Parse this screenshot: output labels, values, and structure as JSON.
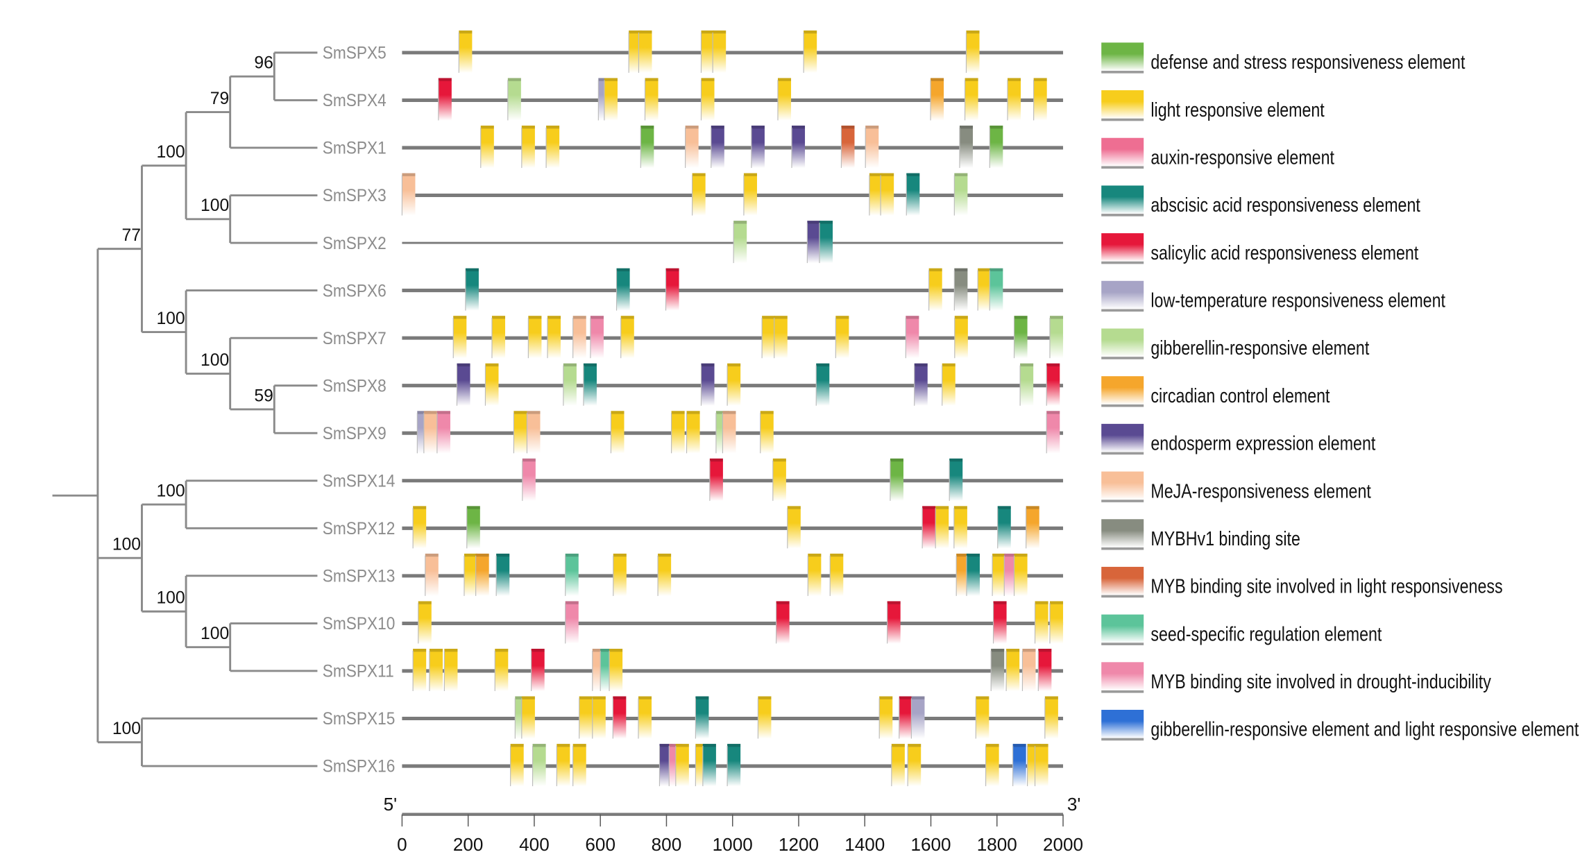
{
  "legend": [
    {
      "key": "defense",
      "label": "defense and stress responsiveness element",
      "color": "#6db545"
    },
    {
      "key": "light",
      "label": "light responsive element",
      "color": "#f7cd1c"
    },
    {
      "key": "auxin",
      "label": "auxin-responsive element",
      "color": "#ee6e92"
    },
    {
      "key": "aba",
      "label": "abscisic acid responsiveness element",
      "color": "#17877d"
    },
    {
      "key": "sa",
      "label": "salicylic acid responsiveness element",
      "color": "#e6173a"
    },
    {
      "key": "lowtemp",
      "label": "low-temperature responsiveness element",
      "color": "#a7a4c6"
    },
    {
      "key": "ga",
      "label": "gibberellin-responsive element",
      "color": "#b5db90"
    },
    {
      "key": "circadian",
      "label": "circadian control element",
      "color": "#f5a62c"
    },
    {
      "key": "endosperm",
      "label": "endosperm expression element",
      "color": "#5a4a92"
    },
    {
      "key": "meja",
      "label": "MeJA-responsiveness element",
      "color": "#f8bf98"
    },
    {
      "key": "mybhv1",
      "label": "MYBHv1 binding site",
      "color": "#878c80"
    },
    {
      "key": "myblight",
      "label": "MYB binding site involved in light responsiveness",
      "color": "#d8653a"
    },
    {
      "key": "seed",
      "label": "seed-specific regulation element",
      "color": "#5cc49a"
    },
    {
      "key": "drought",
      "label": "MYB binding site involved in drought-inducibility",
      "color": "#ef88aa"
    },
    {
      "key": "galight",
      "label": "gibberellin-responsive element and light responsive element",
      "color": "#2e70d6"
    }
  ],
  "tree": {
    "children": [
      {
        "support": "77",
        "children": [
          {
            "support": "100",
            "children": [
              {
                "support": "79",
                "children": [
                  {
                    "support": "96",
                    "children": [
                      {
                        "leaf": "SmSPX5"
                      },
                      {
                        "leaf": "SmSPX4"
                      }
                    ]
                  },
                  {
                    "leaf": "SmSPX1"
                  }
                ]
              },
              {
                "support": "100",
                "children": [
                  {
                    "leaf": "SmSPX3"
                  },
                  {
                    "leaf": "SmSPX2"
                  }
                ]
              }
            ]
          },
          {
            "support": "100",
            "children": [
              {
                "leaf": "SmSPX6"
              },
              {
                "support": "100",
                "children": [
                  {
                    "leaf": "SmSPX7"
                  },
                  {
                    "support": "59",
                    "children": [
                      {
                        "leaf": "SmSPX8"
                      },
                      {
                        "leaf": "SmSPX9"
                      }
                    ]
                  }
                ]
              }
            ]
          }
        ]
      },
      {
        "support": "100",
        "children": [
          {
            "support": "100",
            "children": [
              {
                "leaf": "SmSPX14"
              },
              {
                "leaf": "SmSPX12"
              }
            ]
          },
          {
            "support": "100",
            "children": [
              {
                "leaf": "SmSPX13"
              },
              {
                "support": "100",
                "children": [
                  {
                    "leaf": "SmSPX10"
                  },
                  {
                    "leaf": "SmSPX11"
                  }
                ]
              }
            ]
          }
        ]
      },
      {
        "support": "100",
        "children": [
          {
            "leaf": "SmSPX15"
          },
          {
            "leaf": "SmSPX16"
          }
        ]
      }
    ]
  },
  "genes": [
    {
      "name": "SmSPX5",
      "elements": [
        [
          "light",
          172
        ],
        [
          "light",
          686
        ],
        [
          "light",
          716
        ],
        [
          "light",
          905
        ],
        [
          "light",
          940
        ],
        [
          "light",
          1215
        ],
        [
          "light",
          1707
        ]
      ]
    },
    {
      "name": "SmSPX4",
      "elements": [
        [
          "sa",
          110
        ],
        [
          "ga",
          320
        ],
        [
          "lowtemp",
          594
        ],
        [
          "light",
          612
        ],
        [
          "light",
          735
        ],
        [
          "light",
          905
        ],
        [
          "light",
          1137
        ],
        [
          "circadian",
          1599
        ],
        [
          "light",
          1703
        ],
        [
          "light",
          1832
        ],
        [
          "light",
          1911
        ]
      ]
    },
    {
      "name": "SmSPX1",
      "elements": [
        [
          "light",
          238
        ],
        [
          "light",
          362
        ],
        [
          "light",
          436
        ],
        [
          "defense",
          722
        ],
        [
          "meja",
          857
        ],
        [
          "endosperm",
          935
        ],
        [
          "endosperm",
          1057
        ],
        [
          "endosperm",
          1179
        ],
        [
          "myblight",
          1329
        ],
        [
          "meja",
          1402
        ],
        [
          "mybhv1",
          1687
        ],
        [
          "defense",
          1778
        ]
      ]
    },
    {
      "name": "SmSPX3",
      "elements": [
        [
          "meja",
          0
        ],
        [
          "light",
          878
        ],
        [
          "light",
          1034
        ],
        [
          "light",
          1414
        ],
        [
          "light",
          1448
        ],
        [
          "aba",
          1526
        ],
        [
          "ga",
          1671
        ]
      ]
    },
    {
      "name": "SmSPX2",
      "elements": [
        [
          "ga",
          1003
        ],
        [
          "endosperm",
          1226
        ],
        [
          "aba",
          1263
        ]
      ]
    },
    {
      "name": "SmSPX6",
      "elements": [
        [
          "aba",
          192
        ],
        [
          "aba",
          649
        ],
        [
          "sa",
          798
        ],
        [
          "light",
          1594
        ],
        [
          "mybhv1",
          1671
        ],
        [
          "light",
          1742
        ],
        [
          "seed",
          1778
        ]
      ]
    },
    {
      "name": "SmSPX7",
      "elements": [
        [
          "light",
          155
        ],
        [
          "light",
          272
        ],
        [
          "light",
          382
        ],
        [
          "light",
          440
        ],
        [
          "meja",
          517
        ],
        [
          "drought",
          570
        ],
        [
          "light",
          662
        ],
        [
          "light",
          1089
        ],
        [
          "light",
          1126
        ],
        [
          "light",
          1312
        ],
        [
          "drought",
          1524
        ],
        [
          "light",
          1672
        ],
        [
          "defense",
          1852
        ],
        [
          "ga",
          1960
        ]
      ]
    },
    {
      "name": "SmSPX8",
      "elements": [
        [
          "endosperm",
          166
        ],
        [
          "light",
          252
        ],
        [
          "ga",
          488
        ],
        [
          "aba",
          549
        ],
        [
          "endosperm",
          905
        ],
        [
          "light",
          984
        ],
        [
          "aba",
          1253
        ],
        [
          "endosperm",
          1550
        ],
        [
          "light",
          1634
        ],
        [
          "ga",
          1870
        ],
        [
          "sa",
          1950
        ]
      ]
    },
    {
      "name": "SmSPX9",
      "elements": [
        [
          "lowtemp",
          46
        ],
        [
          "meja",
          66
        ],
        [
          "drought",
          106
        ],
        [
          "light",
          338
        ],
        [
          "meja",
          378
        ],
        [
          "light",
          632
        ],
        [
          "light",
          815
        ],
        [
          "light",
          861
        ],
        [
          "ga",
          950
        ],
        [
          "meja",
          970
        ],
        [
          "light",
          1084
        ],
        [
          "drought",
          1950
        ]
      ]
    },
    {
      "name": "SmSPX14",
      "elements": [
        [
          "drought",
          364
        ],
        [
          "sa",
          931
        ],
        [
          "light",
          1122
        ],
        [
          "defense",
          1477
        ],
        [
          "aba",
          1656
        ]
      ]
    },
    {
      "name": "SmSPX12",
      "elements": [
        [
          "light",
          33
        ],
        [
          "defense",
          196
        ],
        [
          "light",
          1166
        ],
        [
          "sa",
          1574
        ],
        [
          "light",
          1614
        ],
        [
          "light",
          1670
        ],
        [
          "aba",
          1802
        ],
        [
          "circadian",
          1888
        ]
      ]
    },
    {
      "name": "SmSPX13",
      "elements": [
        [
          "meja",
          70
        ],
        [
          "light",
          188
        ],
        [
          "circadian",
          223
        ],
        [
          "aba",
          285
        ],
        [
          "seed",
          494
        ],
        [
          "light",
          639
        ],
        [
          "light",
          774
        ],
        [
          "light",
          1228
        ],
        [
          "light",
          1295
        ],
        [
          "circadian",
          1677
        ],
        [
          "aba",
          1708
        ],
        [
          "light",
          1786
        ],
        [
          "drought",
          1822
        ],
        [
          "light",
          1852
        ]
      ]
    },
    {
      "name": "SmSPX10",
      "elements": [
        [
          "light",
          49
        ],
        [
          "drought",
          494
        ],
        [
          "sa",
          1132
        ],
        [
          "sa",
          1468
        ],
        [
          "sa",
          1789
        ],
        [
          "light",
          1915
        ],
        [
          "light",
          1960
        ]
      ]
    },
    {
      "name": "SmSPX11",
      "elements": [
        [
          "light",
          33
        ],
        [
          "light",
          83
        ],
        [
          "light",
          128
        ],
        [
          "light",
          281
        ],
        [
          "sa",
          391
        ],
        [
          "meja",
          576
        ],
        [
          "seed",
          600
        ],
        [
          "light",
          627
        ],
        [
          "mybhv1",
          1782
        ],
        [
          "light",
          1828
        ],
        [
          "meja",
          1877
        ],
        [
          "sa",
          1925
        ]
      ]
    },
    {
      "name": "SmSPX15",
      "elements": [
        [
          "ga",
          342
        ],
        [
          "light",
          362
        ],
        [
          "light",
          536
        ],
        [
          "light",
          576
        ],
        [
          "sa",
          638
        ],
        [
          "light",
          715
        ],
        [
          "aba",
          888
        ],
        [
          "light",
          1077
        ],
        [
          "light",
          1444
        ],
        [
          "sa",
          1504
        ],
        [
          "lowtemp",
          1541
        ],
        [
          "light",
          1736
        ],
        [
          "light",
          1945
        ]
      ]
    },
    {
      "name": "SmSPX16",
      "elements": [
        [
          "light",
          328
        ],
        [
          "ga",
          395
        ],
        [
          "light",
          468
        ],
        [
          "light",
          517
        ],
        [
          "endosperm",
          779
        ],
        [
          "drought",
          808
        ],
        [
          "light",
          828
        ],
        [
          "light",
          888
        ],
        [
          "aba",
          910
        ],
        [
          "aba",
          984
        ],
        [
          "light",
          1481
        ],
        [
          "light",
          1530
        ],
        [
          "light",
          1766
        ],
        [
          "galight",
          1848
        ],
        [
          "light",
          1892
        ],
        [
          "light",
          1915
        ]
      ]
    }
  ],
  "axis": {
    "start_label": "5'",
    "end_label": "3'",
    "min": 0,
    "max": 2000,
    "ticks": [
      "0",
      "200",
      "400",
      "600",
      "800",
      "1000",
      "1200",
      "1400",
      "1600",
      "1800",
      "2000"
    ]
  }
}
